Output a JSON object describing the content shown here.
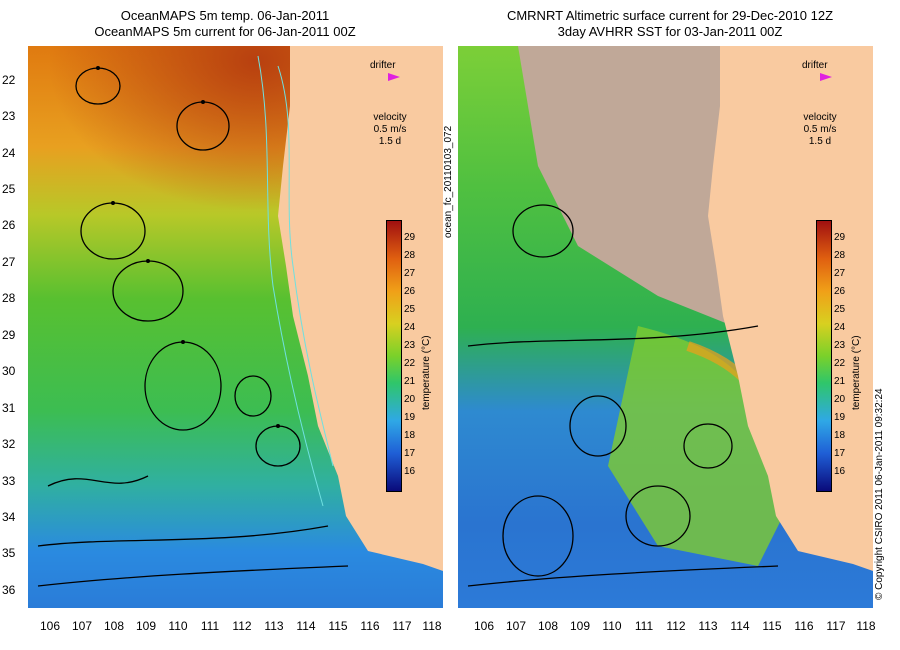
{
  "left_panel": {
    "title_line1": "OceanMAPS 5m temp. 06-Jan-2011",
    "title_line2": "OceanMAPS 5m current for 06-Jan-2011 00Z"
  },
  "right_panel": {
    "title_line1": "CMRNRT Altimetric surface current for 29-Dec-2010 12Z",
    "title_line2": "3day AVHRR SST for 03-Jan-2011 00Z"
  },
  "legend": {
    "drifter_label": "drifter",
    "velocity_label": "velocity",
    "velocity_value": "0.5 m/s",
    "velocity_time": "1.5 d"
  },
  "colorbar": {
    "title": "temperature (°C)",
    "ticks": [
      "29",
      "28",
      "27",
      "26",
      "25",
      "24",
      "23",
      "22",
      "21",
      "20",
      "19",
      "18",
      "17",
      "16"
    ]
  },
  "latitudes": [
    "22",
    "23",
    "24",
    "25",
    "26",
    "27",
    "28",
    "29",
    "30",
    "31",
    "32",
    "33",
    "34",
    "35",
    "36"
  ],
  "longitudes": [
    "106",
    "107",
    "108",
    "109",
    "110",
    "111",
    "112",
    "113",
    "114",
    "115",
    "116",
    "117",
    "118"
  ],
  "side_text_left": "ocean_fc_20110103_072",
  "side_text_right": "© Copyright CSIRO 2011   06-Jan-2011 09:32:24",
  "colors": {
    "land": "#f9caa0",
    "cloud": "#c0a898",
    "drifter_marker": "#e020e0",
    "contour": "#6fe0e0"
  }
}
